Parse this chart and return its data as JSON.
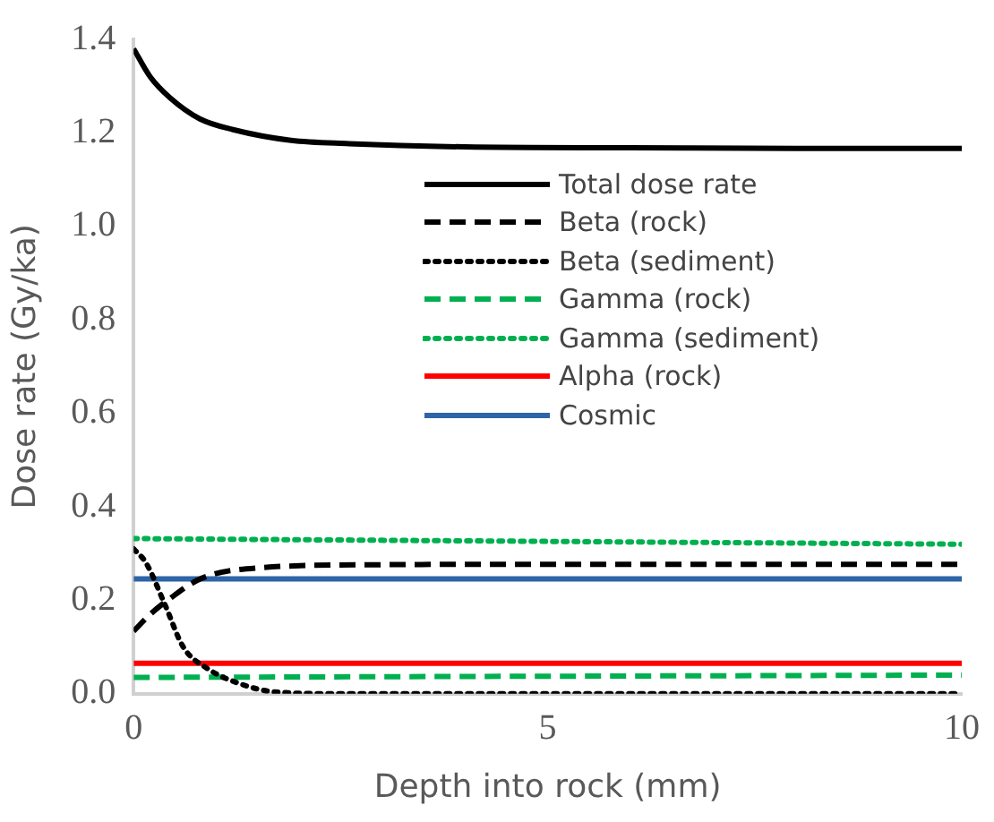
{
  "chart_data": {
    "type": "line",
    "xlabel": "Depth into rock (mm)",
    "ylabel": "Dose rate (Gy/ka)",
    "xlim": [
      0,
      10
    ],
    "xticks": [
      0,
      5,
      10
    ],
    "ylim": [
      0,
      1.4
    ],
    "yticks": [
      {
        "value": 0,
        "label": "0.0"
      },
      0.2,
      0.4,
      0.6,
      0.8,
      {
        "value": 1,
        "label": "1.0"
      },
      1.2,
      1.4
    ],
    "grid": false,
    "legend": "right",
    "marker": "none",
    "series": [
      {
        "name": "Total dose rate",
        "color": "#000000",
        "line_style": "solid",
        "x": [
          0,
          0.2,
          0.44,
          0.8,
          1.2,
          1.9,
          2.6,
          4,
          6,
          8,
          10
        ],
        "values": [
          1.38,
          1.32,
          1.275,
          1.23,
          1.207,
          1.184,
          1.177,
          1.17,
          1.168,
          1.167,
          1.167
        ]
      },
      {
        "name": "Beta (rock)",
        "color": "#000000",
        "line_style": "dashed",
        "x": [
          0,
          0.2,
          0.44,
          0.82,
          1.55,
          2.9,
          5,
          10
        ],
        "values": [
          0.134,
          0.17,
          0.204,
          0.247,
          0.27,
          0.276,
          0.277,
          0.277
        ]
      },
      {
        "name": "Beta (sediment)",
        "color": "#000000",
        "line_style": "dotted",
        "x": [
          0,
          0.15,
          0.38,
          0.6,
          0.9,
          1.26,
          1.7,
          2.5,
          10
        ],
        "values": [
          0.31,
          0.28,
          0.19,
          0.1,
          0.053,
          0.023,
          0.004,
          0,
          0
        ]
      },
      {
        "name": "Gamma (rock)",
        "color": "#00b050",
        "line_style": "dashed",
        "x": [
          0,
          10
        ],
        "values": [
          0.035,
          0.04
        ]
      },
      {
        "name": "Gamma (sediment)",
        "color": "#00b050",
        "line_style": "dotted",
        "x": [
          0,
          10
        ],
        "values": [
          0.332,
          0.32
        ]
      },
      {
        "name": "Alpha (rock)",
        "color": "#ff0000",
        "line_style": "solid",
        "x": [
          0,
          10
        ],
        "values": [
          0.065,
          0.065
        ]
      },
      {
        "name": "Cosmic",
        "color": "#2e64a8",
        "line_style": "solid",
        "x": [
          0,
          10
        ],
        "values": [
          0.246,
          0.246
        ]
      }
    ]
  }
}
